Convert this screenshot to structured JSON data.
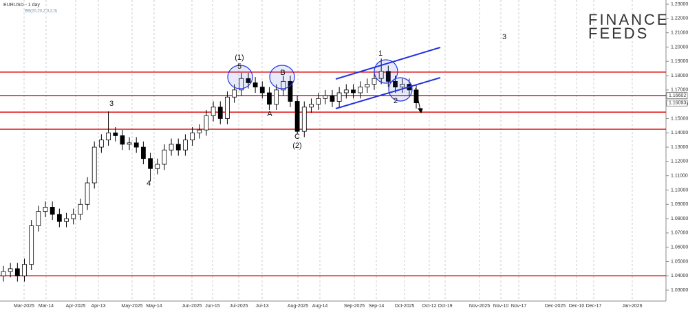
{
  "chart_data": {
    "type": "candlestick",
    "title": "EURUSD - 1 day",
    "subtitle": "BB(20,20,2,0,2,0)",
    "series": {
      "open": [
        1.04,
        1.043,
        1.045,
        1.04,
        1.048,
        1.075,
        1.085,
        1.088,
        1.083,
        1.078,
        1.08,
        1.083,
        1.09,
        1.105,
        1.13,
        1.135,
        1.14,
        1.138,
        1.132,
        1.133,
        1.13,
        1.122,
        1.115,
        1.118,
        1.128,
        1.132,
        1.128,
        1.135,
        1.14,
        1.142,
        1.152,
        1.158,
        1.15,
        1.165,
        1.17,
        1.178,
        1.175,
        1.172,
        1.168,
        1.16,
        1.17,
        1.176,
        1.162,
        1.141,
        1.158,
        1.16,
        1.164,
        1.166,
        1.162,
        1.168,
        1.17,
        1.168,
        1.172,
        1.174,
        1.178,
        1.183,
        1.176,
        1.172,
        1.174,
        1.17
      ],
      "high": [
        1.047,
        1.049,
        1.049,
        1.052,
        1.079,
        1.089,
        1.092,
        1.092,
        1.087,
        1.084,
        1.087,
        1.094,
        1.109,
        1.134,
        1.139,
        1.155,
        1.144,
        1.142,
        1.137,
        1.137,
        1.134,
        1.126,
        1.122,
        1.132,
        1.136,
        1.136,
        1.139,
        1.144,
        1.146,
        1.156,
        1.162,
        1.162,
        1.169,
        1.174,
        1.182,
        1.182,
        1.179,
        1.176,
        1.172,
        1.174,
        1.18,
        1.18,
        1.166,
        1.162,
        1.164,
        1.168,
        1.17,
        1.17,
        1.172,
        1.174,
        1.174,
        1.176,
        1.178,
        1.182,
        1.192,
        1.187,
        1.18,
        1.178,
        1.178,
        1.174
      ],
      "low": [
        1.036,
        1.039,
        1.036,
        1.036,
        1.044,
        1.071,
        1.081,
        1.079,
        1.074,
        1.074,
        1.076,
        1.079,
        1.086,
        1.101,
        1.126,
        1.131,
        1.134,
        1.128,
        1.128,
        1.126,
        1.118,
        1.106,
        1.111,
        1.114,
        1.124,
        1.124,
        1.124,
        1.131,
        1.136,
        1.138,
        1.148,
        1.146,
        1.146,
        1.161,
        1.166,
        1.171,
        1.168,
        1.164,
        1.156,
        1.156,
        1.166,
        1.158,
        1.139,
        1.137,
        1.154,
        1.156,
        1.16,
        1.158,
        1.158,
        1.164,
        1.164,
        1.164,
        1.168,
        1.17,
        1.174,
        1.172,
        1.168,
        1.168,
        1.166,
        1.157
      ],
      "close": [
        1.043,
        1.045,
        1.04,
        1.048,
        1.075,
        1.085,
        1.088,
        1.083,
        1.078,
        1.08,
        1.083,
        1.09,
        1.105,
        1.13,
        1.135,
        1.14,
        1.138,
        1.132,
        1.133,
        1.13,
        1.122,
        1.115,
        1.118,
        1.128,
        1.132,
        1.128,
        1.135,
        1.14,
        1.142,
        1.152,
        1.158,
        1.15,
        1.165,
        1.17,
        1.178,
        1.175,
        1.172,
        1.168,
        1.16,
        1.17,
        1.176,
        1.162,
        1.141,
        1.158,
        1.16,
        1.164,
        1.166,
        1.162,
        1.168,
        1.17,
        1.168,
        1.172,
        1.174,
        1.178,
        1.183,
        1.176,
        1.172,
        1.174,
        1.17,
        1.161
      ]
    },
    "ylim": [
      1.0161,
      1.2329
    ],
    "yticks": [
      {
        "value": 1.03,
        "label": "1.03000"
      },
      {
        "value": 1.04,
        "label": "1.04000"
      },
      {
        "value": 1.05,
        "label": "1.05000"
      },
      {
        "value": 1.06,
        "label": "1.06000"
      },
      {
        "value": 1.07,
        "label": "1.07000"
      },
      {
        "value": 1.08,
        "label": "1.08000"
      },
      {
        "value": 1.09,
        "label": "1.09000"
      },
      {
        "value": 1.1,
        "label": "1.10000"
      },
      {
        "value": 1.11,
        "label": "1.11000"
      },
      {
        "value": 1.12,
        "label": "1.12000"
      },
      {
        "value": 1.13,
        "label": "1.13000"
      },
      {
        "value": 1.14,
        "label": "1.14000"
      },
      {
        "value": 1.15,
        "label": "1.15000"
      },
      {
        "value": 1.16,
        "label": "1.16000"
      },
      {
        "value": 1.17,
        "label": "1.17000"
      },
      {
        "value": 1.18,
        "label": "1.18000"
      },
      {
        "value": 1.19,
        "label": "1.19000"
      },
      {
        "value": 1.2,
        "label": "1.20000"
      },
      {
        "value": 1.21,
        "label": "1.21000"
      },
      {
        "value": 1.22,
        "label": "1.22000"
      },
      {
        "value": 1.23,
        "label": "1.23000"
      }
    ],
    "xlabels": [
      "Mar-2025",
      "Mar-14",
      "Apr-2025",
      "Apr-13",
      "May-2025",
      "May-14",
      "Jun-2025",
      "Jun-15",
      "Jul-2025",
      "Jul-13",
      "Aug-2025",
      "Aug-14",
      "Sep-2025",
      "Sep-14",
      "Oct-2025",
      "Oct-12",
      "Oct-19",
      "Nov-2025",
      "Nov-10",
      "Nov-17",
      "Dec-2025",
      "Dec-10",
      "Dec-17",
      "Jan-2026"
    ],
    "levels": [
      1.1825,
      1.166,
      1.1545,
      1.1425,
      1.04
    ],
    "price_labels": [
      {
        "value": 1.16602,
        "label": "1.16602"
      },
      {
        "value": 1.16093,
        "label": "1.16093"
      }
    ],
    "annotations": [
      "(1)",
      "5",
      "B",
      "A",
      "C",
      "(2)",
      "3",
      "4",
      "1",
      "2",
      "3"
    ],
    "logo": [
      "FINANCE",
      "FEEDS"
    ]
  }
}
